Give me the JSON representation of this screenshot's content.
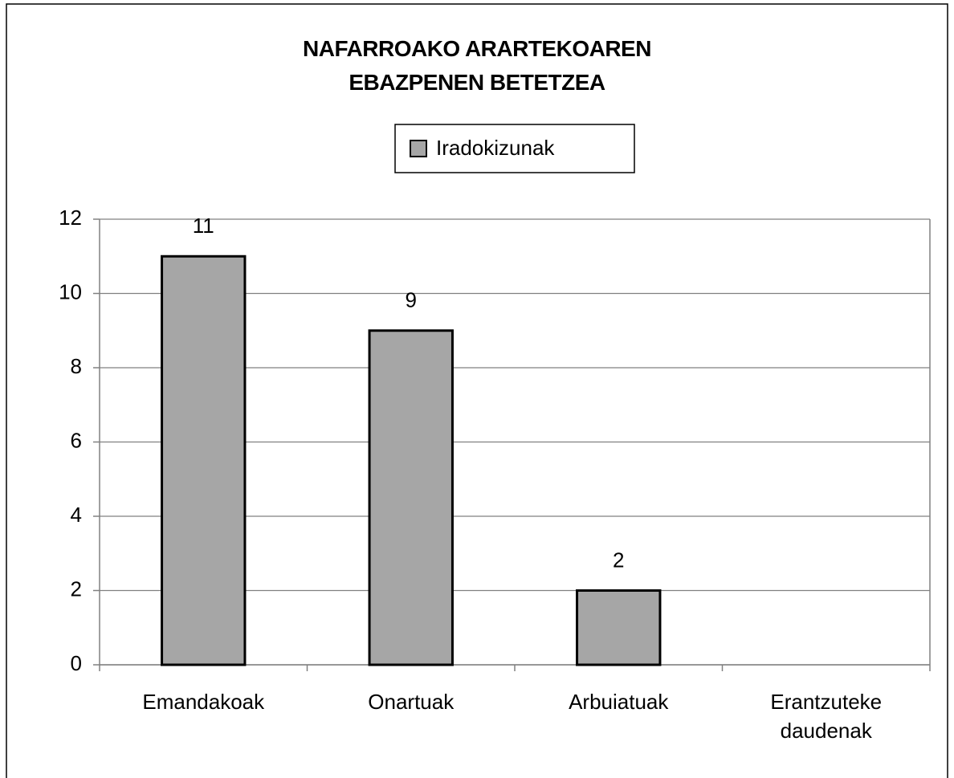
{
  "chart_data": {
    "type": "bar",
    "title": "NAFARROAKO ARARTEKOAREN\nEBAZPENEN BETETZEA",
    "categories": [
      "Emandakoak",
      "Onartuak",
      "Arbuiatuak",
      "Erantzuteke daudenak"
    ],
    "series": [
      {
        "name": "Iradokizunak",
        "color": "#a6a6a6",
        "values": [
          11,
          9,
          2,
          null
        ]
      }
    ],
    "ylim": [
      0,
      12
    ],
    "yticks": [
      0,
      2,
      4,
      6,
      8,
      10,
      12
    ],
    "grid": true,
    "legend": "top"
  }
}
